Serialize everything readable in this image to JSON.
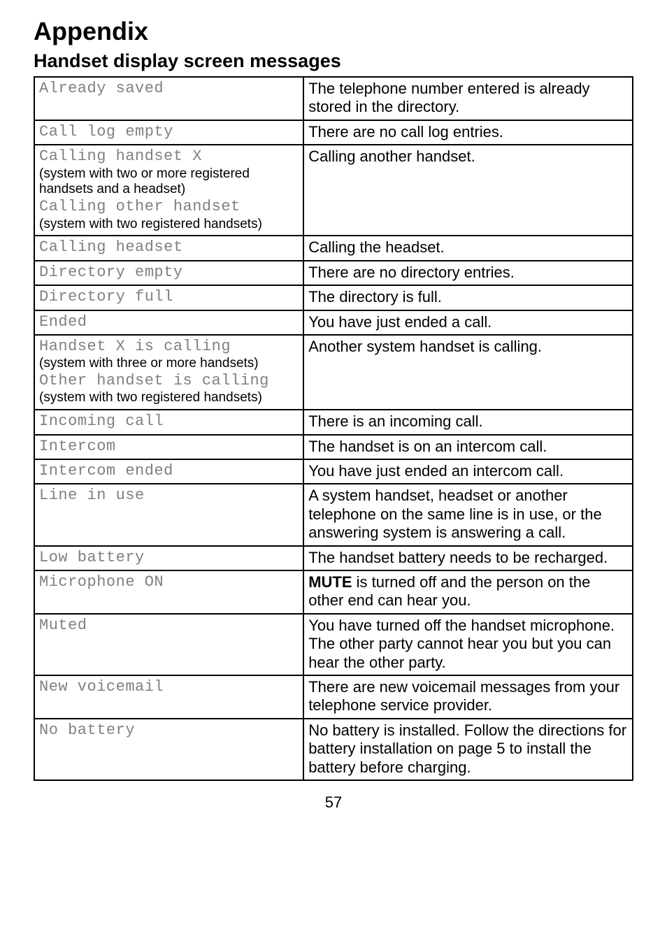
{
  "heading": "Appendix",
  "subheading": "Handset display screen messages",
  "page_number": "57",
  "rows": [
    {
      "lcd_lines": [
        "Already saved"
      ],
      "notes": [],
      "desc": "The telephone number entered is already stored in the directory."
    },
    {
      "lcd_lines": [
        "Call log empty"
      ],
      "notes": [],
      "desc": "There are no call log entries."
    },
    {
      "lcd_lines": [
        "Calling handset X",
        "Calling other handset"
      ],
      "notes": [
        "(system with two or more registered\n handsets and a headset)",
        "(system with two registered handsets)"
      ],
      "desc": "Calling another handset."
    },
    {
      "lcd_lines": [
        "Calling headset"
      ],
      "notes": [],
      "desc": "Calling the headset."
    },
    {
      "lcd_lines": [
        "Directory empty"
      ],
      "notes": [],
      "desc": "There are no directory entries."
    },
    {
      "lcd_lines": [
        "Directory full"
      ],
      "notes": [],
      "desc": "The directory is full."
    },
    {
      "lcd_lines": [
        "Ended"
      ],
      "notes": [],
      "desc": "You have just ended a call."
    },
    {
      "lcd_lines": [
        "Handset X is calling",
        "Other handset is calling"
      ],
      "notes": [
        "(system with three or more handsets)",
        "(system with two registered handsets)"
      ],
      "desc": "Another system handset is calling."
    },
    {
      "lcd_lines": [
        "Incoming call"
      ],
      "notes": [],
      "desc": "There is an incoming call."
    },
    {
      "lcd_lines": [
        "Intercom"
      ],
      "notes": [],
      "desc": "The handset is on an intercom call."
    },
    {
      "lcd_lines": [
        "Intercom ended"
      ],
      "notes": [],
      "desc": "You have just ended an intercom call."
    },
    {
      "lcd_lines": [
        "Line in use"
      ],
      "notes": [],
      "desc": "A system handset, headset or another telephone on the same line is in use, or the answering system is answering a call."
    },
    {
      "lcd_lines": [
        "Low battery"
      ],
      "notes": [],
      "desc": "The handset battery needs to be recharged."
    },
    {
      "lcd_lines": [
        "Microphone ON"
      ],
      "notes": [],
      "desc_html": "<b>MUTE</b> is turned off and the person on the other end can hear you."
    },
    {
      "lcd_lines": [
        "Muted"
      ],
      "notes": [],
      "desc": "You have turned off the handset microphone. The other party cannot hear you but you can hear the other party."
    },
    {
      "lcd_lines": [
        "New voicemail"
      ],
      "notes": [],
      "desc": "There are new voicemail messages from your telephone service provider."
    },
    {
      "lcd_lines": [
        "No battery"
      ],
      "notes": [],
      "desc": "No battery is installed. Follow the directions for battery installation on page 5 to install the battery before charging."
    }
  ]
}
